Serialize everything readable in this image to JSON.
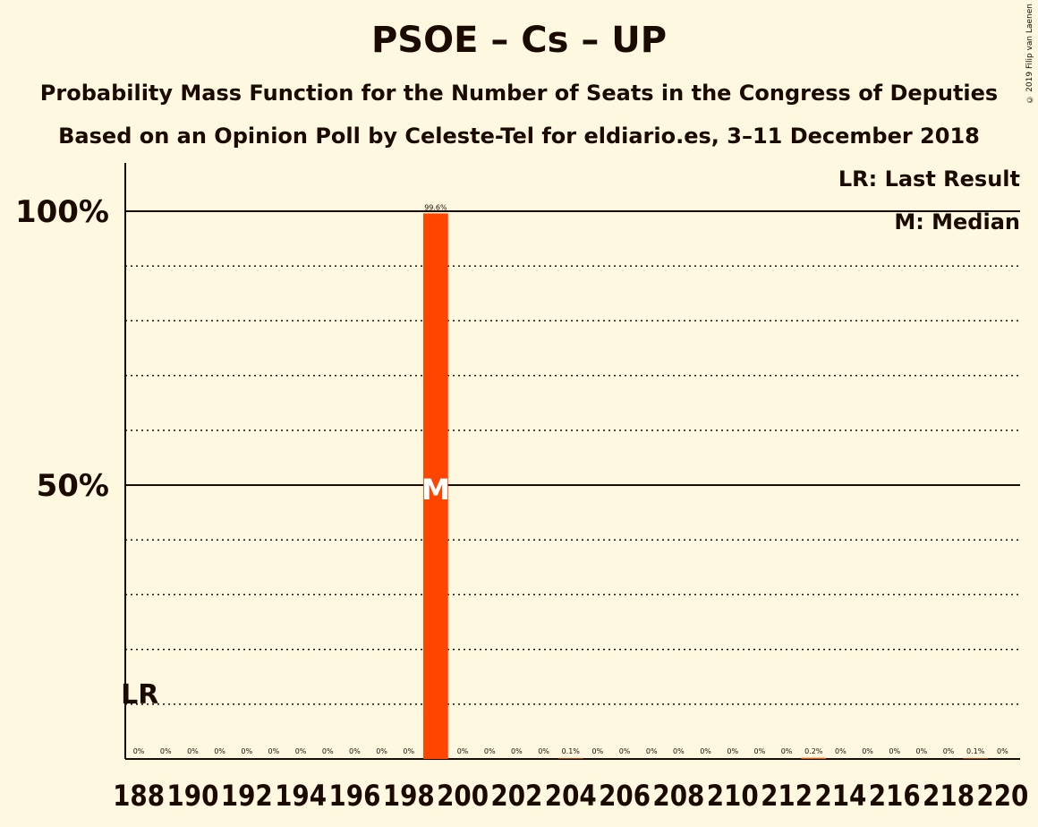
{
  "title": "PSOE – Cs – UP",
  "subtitle1": "Probability Mass Function for the Number of Seats in the Congress of Deputies",
  "subtitle2": "Based on an Opinion Poll by Celeste-Tel for eldiario.es, 3–11 December 2018",
  "copyright": "© 2019 Filip van Laenen",
  "legend": {
    "last_result": "LR: Last Result",
    "median": "M: Median"
  },
  "markers": {
    "last_result_label": "LR",
    "last_result_seat": 188,
    "median_label": "M",
    "median_seat": 199
  },
  "colors": {
    "bar": "#ff4500",
    "background": "#fff8e1",
    "text": "#1a0a00"
  },
  "chart_data": {
    "type": "bar",
    "x": [
      188,
      189,
      190,
      191,
      192,
      193,
      194,
      195,
      196,
      197,
      198,
      199,
      200,
      201,
      202,
      203,
      204,
      205,
      206,
      207,
      208,
      209,
      210,
      211,
      212,
      213,
      214,
      215,
      216,
      217,
      218,
      219,
      220
    ],
    "values": [
      0,
      0,
      0,
      0,
      0,
      0,
      0,
      0,
      0,
      0,
      0,
      99.6,
      0,
      0,
      0,
      0,
      0.1,
      0,
      0,
      0,
      0,
      0,
      0,
      0,
      0,
      0.2,
      0,
      0,
      0,
      0,
      0,
      0.1,
      0
    ],
    "data_labels": [
      "0%",
      "0%",
      "0%",
      "0%",
      "0%",
      "0%",
      "0%",
      "0%",
      "0%",
      "0%",
      "0%",
      "99.6%",
      "0%",
      "0%",
      "0%",
      "0%",
      "0.1%",
      "0%",
      "0%",
      "0%",
      "0%",
      "0%",
      "0%",
      "0%",
      "0%",
      "0.2%",
      "0%",
      "0%",
      "0%",
      "0%",
      "0%",
      "0.1%",
      "0%"
    ],
    "x_tick_labels": [
      "188",
      "190",
      "192",
      "194",
      "196",
      "198",
      "200",
      "202",
      "204",
      "206",
      "208",
      "210",
      "212",
      "214",
      "216",
      "218",
      "220"
    ],
    "y_tick_labels": [
      "50%",
      "100%"
    ],
    "y_ticks": [
      50,
      100
    ],
    "ylim": [
      0,
      100
    ],
    "grid": "dotted every 10%, solid at 50% and 100%",
    "legend_position": "top-right"
  }
}
